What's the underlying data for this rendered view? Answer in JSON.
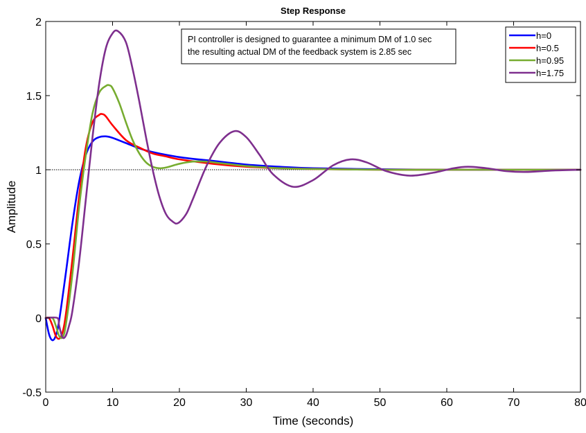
{
  "chart_data": {
    "type": "line",
    "title": "Step Response",
    "xlabel": "Time (seconds)",
    "ylabel": "Amplitude",
    "xlim": [
      0,
      80
    ],
    "ylim": [
      -0.5,
      2
    ],
    "xticks": [
      0,
      10,
      20,
      30,
      40,
      50,
      60,
      70,
      80
    ],
    "xtick_labels": [
      "0",
      "10",
      "20",
      "30",
      "40",
      "50",
      "60",
      "70",
      "80"
    ],
    "yticks": [
      -0.5,
      0,
      0.5,
      1,
      1.5,
      2
    ],
    "ytick_labels": [
      "-0.5",
      "0",
      "0.5",
      "1",
      "1.5",
      "2"
    ],
    "grid": false,
    "legend_position": "top-right",
    "reference_line": {
      "y": 1,
      "style": "dotted",
      "color": "#000000"
    },
    "annotation": [
      "PI controller is designed to guarantee a minimum DM of 1.0 sec",
      "the resulting actual DM of the feedback system is 2.85 sec"
    ],
    "series": [
      {
        "name": "h=0",
        "color": "#0000ff",
        "x": [
          0,
          0.5,
          1,
          1.5,
          2,
          3,
          4,
          5,
          6,
          7,
          8,
          9,
          10,
          12,
          15,
          20,
          25,
          30,
          35,
          40,
          50,
          60,
          70,
          80
        ],
        "y": [
          0,
          -0.11,
          -0.15,
          -0.12,
          -0.02,
          0.3,
          0.64,
          0.92,
          1.1,
          1.19,
          1.22,
          1.225,
          1.215,
          1.18,
          1.13,
          1.085,
          1.06,
          1.035,
          1.02,
          1.01,
          1.003,
          1.0,
          1.0,
          1.0
        ]
      },
      {
        "name": "h=0.5",
        "color": "#ff0000",
        "x": [
          0,
          0.5,
          1,
          1.5,
          2,
          2.5,
          3,
          4,
          5,
          6,
          7,
          8,
          8.5,
          9,
          10,
          12,
          14,
          16,
          18,
          20,
          25,
          30,
          35,
          40,
          50,
          60,
          70,
          80
        ],
        "y": [
          0,
          0,
          -0.05,
          -0.12,
          -0.14,
          -0.1,
          0.02,
          0.4,
          0.82,
          1.15,
          1.32,
          1.37,
          1.375,
          1.36,
          1.3,
          1.2,
          1.15,
          1.11,
          1.09,
          1.07,
          1.04,
          1.02,
          1.01,
          1.005,
          1.0,
          1.0,
          1.0,
          1.0
        ]
      },
      {
        "name": "h=0.95",
        "color": "#77ac30",
        "x": [
          0,
          1,
          1.5,
          2,
          2.5,
          3,
          4,
          5,
          6,
          7,
          8,
          9,
          9.5,
          10,
          11,
          12,
          13,
          14,
          15,
          16,
          17,
          18,
          20,
          22,
          24,
          26,
          28,
          30,
          35,
          40,
          50,
          60,
          70,
          80
        ],
        "y": [
          0,
          0,
          -0.05,
          -0.12,
          -0.13,
          -0.05,
          0.3,
          0.75,
          1.1,
          1.38,
          1.52,
          1.565,
          1.57,
          1.55,
          1.45,
          1.32,
          1.2,
          1.11,
          1.05,
          1.02,
          1.01,
          1.015,
          1.04,
          1.055,
          1.055,
          1.045,
          1.035,
          1.025,
          1.01,
          1.005,
          1.0,
          1.0,
          1.0,
          1.0
        ]
      },
      {
        "name": "h=1.75",
        "color": "#7e2f8e",
        "x": [
          0,
          1.75,
          2,
          2.5,
          3,
          3.5,
          4,
          5,
          6,
          7,
          8,
          9,
          10,
          10.8,
          12,
          13,
          14,
          15,
          16,
          17,
          18,
          19,
          19.8,
          21,
          22,
          24,
          26,
          28.2,
          30,
          32,
          34,
          37,
          40,
          43,
          45.6,
          48,
          51,
          54.5,
          58,
          61,
          63.2,
          66,
          69,
          72,
          76,
          80
        ],
        "y": [
          0,
          0,
          -0.05,
          -0.13,
          -0.12,
          -0.05,
          0.05,
          0.38,
          0.8,
          1.22,
          1.58,
          1.82,
          1.92,
          1.935,
          1.86,
          1.68,
          1.46,
          1.22,
          1.0,
          0.82,
          0.7,
          0.65,
          0.64,
          0.7,
          0.8,
          1.02,
          1.18,
          1.26,
          1.22,
          1.1,
          0.97,
          0.885,
          0.93,
          1.03,
          1.07,
          1.05,
          0.99,
          0.96,
          0.98,
          1.01,
          1.02,
          1.01,
          0.99,
          0.985,
          0.995,
          1.0
        ]
      }
    ]
  }
}
